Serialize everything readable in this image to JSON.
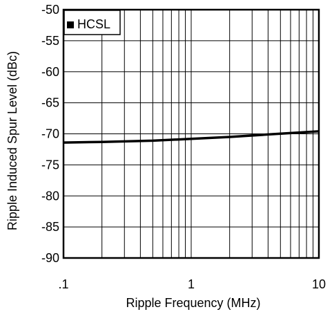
{
  "chart_data": {
    "type": "line",
    "title": "",
    "xlabel": "Ripple Frequency (MHz)",
    "ylabel": "Ripple Induced Spur Level (dBc)",
    "xscale": "log",
    "xlim": [
      0.1,
      10
    ],
    "ylim": [
      -90,
      -50
    ],
    "grid": true,
    "legend_position": "top-left",
    "x_tick_labels": [
      {
        "value": 0.1,
        "label": ".1"
      },
      {
        "value": 1,
        "label": "1"
      },
      {
        "value": 10,
        "label": "10"
      }
    ],
    "y_tick_labels": [
      {
        "value": -50,
        "label": "-50"
      },
      {
        "value": -55,
        "label": "-55"
      },
      {
        "value": -60,
        "label": "-60"
      },
      {
        "value": -65,
        "label": "-65"
      },
      {
        "value": -70,
        "label": "-70"
      },
      {
        "value": -75,
        "label": "-75"
      },
      {
        "value": -80,
        "label": "-80"
      },
      {
        "value": -85,
        "label": "-85"
      },
      {
        "value": -90,
        "label": "-90"
      }
    ],
    "series": [
      {
        "name": "HCSL",
        "color": "#000000",
        "x": [
          0.1,
          0.2,
          0.5,
          1,
          2,
          4,
          10
        ],
        "y": [
          -71.4,
          -71.3,
          -71.1,
          -70.8,
          -70.5,
          -70.1,
          -69.6
        ]
      }
    ]
  }
}
